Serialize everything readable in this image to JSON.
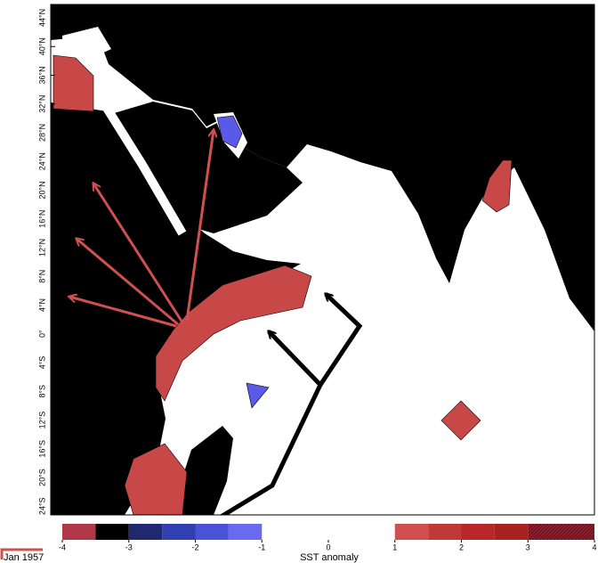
{
  "map": {
    "lat_labels": [
      "44°N",
      "40°N",
      "36°N",
      "32°N",
      "28°N",
      "24°N",
      "20°N",
      "16°N",
      "12°N",
      "8°N",
      "4°N",
      "0°",
      "4°S",
      "8°S",
      "12°S",
      "16°S",
      "20°S",
      "24°S"
    ],
    "colorbar": {
      "ticks": [
        -4,
        -3,
        -2,
        -1,
        0,
        1,
        2,
        3,
        4
      ],
      "label": "SST anomaly"
    },
    "date": "Jan 1957"
  }
}
